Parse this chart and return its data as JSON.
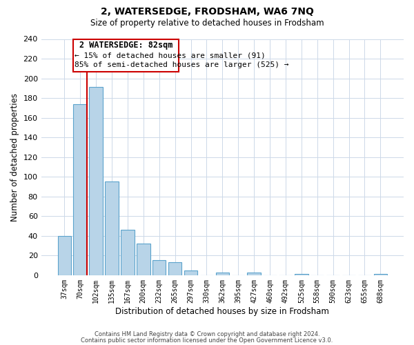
{
  "title": "2, WATERSEDGE, FRODSHAM, WA6 7NQ",
  "subtitle": "Size of property relative to detached houses in Frodsham",
  "xlabel": "Distribution of detached houses by size in Frodsham",
  "ylabel": "Number of detached properties",
  "bar_labels": [
    "37sqm",
    "70sqm",
    "102sqm",
    "135sqm",
    "167sqm",
    "200sqm",
    "232sqm",
    "265sqm",
    "297sqm",
    "330sqm",
    "362sqm",
    "395sqm",
    "427sqm",
    "460sqm",
    "492sqm",
    "525sqm",
    "558sqm",
    "590sqm",
    "623sqm",
    "655sqm",
    "688sqm"
  ],
  "bar_values": [
    40,
    174,
    191,
    95,
    46,
    32,
    15,
    13,
    5,
    0,
    3,
    0,
    3,
    0,
    0,
    1,
    0,
    0,
    0,
    0,
    1
  ],
  "bar_color": "#b8d4e8",
  "bar_edge_color": "#5ba3cc",
  "property_line_color": "#cc0000",
  "ylim": [
    0,
    240
  ],
  "yticks": [
    0,
    20,
    40,
    60,
    80,
    100,
    120,
    140,
    160,
    180,
    200,
    220,
    240
  ],
  "annotation_title": "2 WATERSEDGE: 82sqm",
  "annotation_line1": "← 15% of detached houses are smaller (91)",
  "annotation_line2": "85% of semi-detached houses are larger (525) →",
  "footnote1": "Contains HM Land Registry data © Crown copyright and database right 2024.",
  "footnote2": "Contains public sector information licensed under the Open Government Licence v3.0.",
  "background_color": "#ffffff",
  "grid_color": "#ccd8e8"
}
